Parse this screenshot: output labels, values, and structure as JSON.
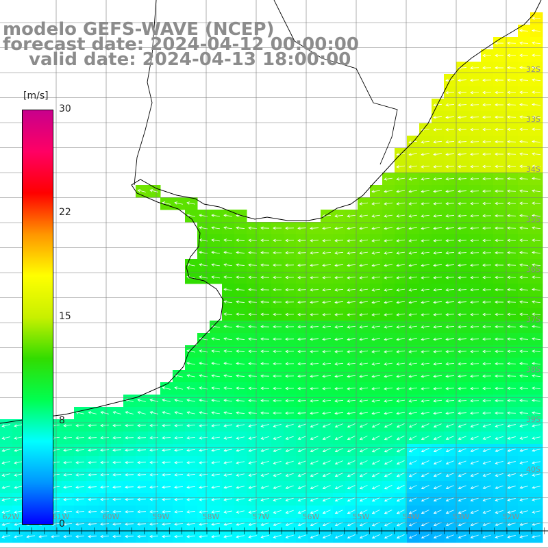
{
  "header": {
    "model": "modelo GEFS-WAVE (NCEP)",
    "forecast": "forecast date: 2024-04-12 00:00:00",
    "valid": "valid date: 2024-04-13 18:00:00"
  },
  "colorbar": {
    "units": "[m/s]",
    "ticks": [
      "30",
      "22",
      "15",
      "8",
      "0"
    ],
    "colors": [
      "#0000ff",
      "#0096ff",
      "#00ffff",
      "#00ff50",
      "#32dc00",
      "#c8f000",
      "#ffff00",
      "#ff9600",
      "#ff0000",
      "#ff0064",
      "#c8008c"
    ]
  },
  "map": {
    "lat_labels": [
      "32S",
      "33S",
      "34S",
      "35S",
      "36S",
      "37S",
      "38S",
      "39S",
      "40S"
    ],
    "lon_labels": [
      "62W",
      "61W",
      "60W",
      "59W",
      "58W",
      "57W",
      "56W",
      "55W",
      "54W",
      "53W",
      "52W"
    ],
    "grid": true,
    "arrow_color": "#ffffff",
    "coast_color": "#000000"
  }
}
